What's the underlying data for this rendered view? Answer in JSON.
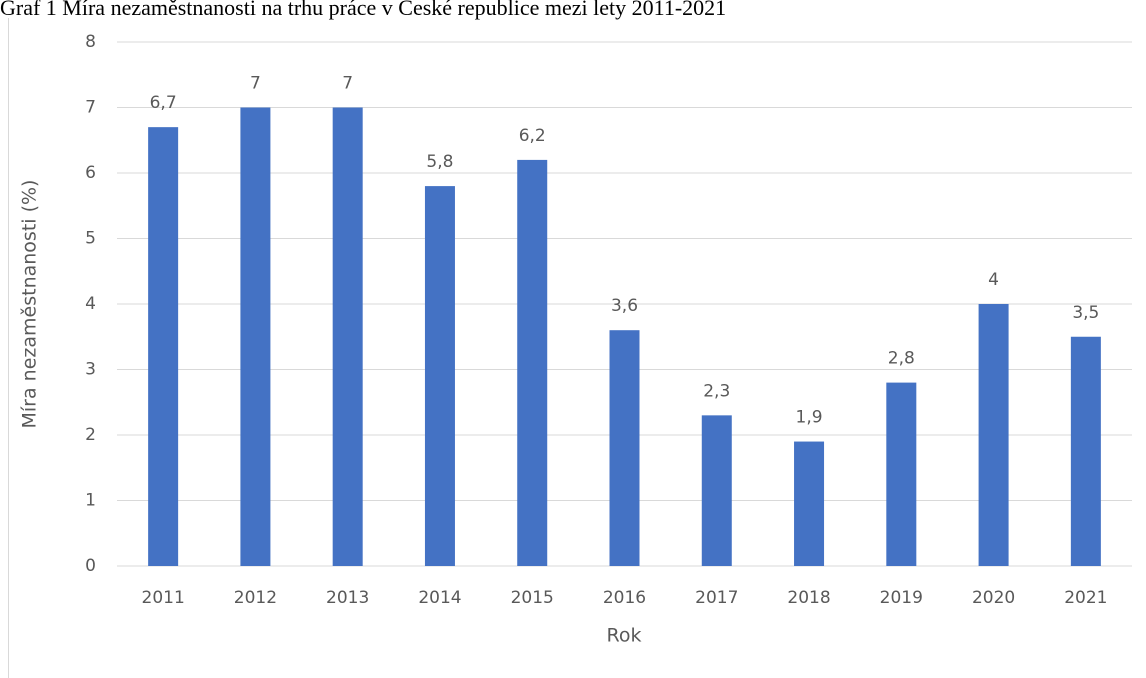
{
  "chart_data": {
    "type": "bar",
    "caption": "Graf 1 Míra nezaměstnanosti na trhu práce v České republice mezi lety 2011-2021",
    "x_label": "Rok",
    "y_label": "Míra nezaměstnanosti (%)",
    "categories": [
      "2011",
      "2012",
      "2013",
      "2014",
      "2015",
      "2016",
      "2017",
      "2018",
      "2019",
      "2020",
      "2021"
    ],
    "values": [
      6.7,
      7,
      7,
      5.8,
      6.2,
      3.6,
      2.3,
      1.9,
      2.8,
      4,
      3.5
    ],
    "value_labels": [
      "6,7",
      "7",
      "7",
      "5,8",
      "6,2",
      "3,6",
      "2,3",
      "1,9",
      "2,8",
      "4",
      "3,5"
    ],
    "color": "#4472c4",
    "ylim": [
      0,
      8
    ],
    "yticks": [
      0,
      1,
      2,
      3,
      4,
      5,
      6,
      7,
      8
    ],
    "grid": true
  }
}
